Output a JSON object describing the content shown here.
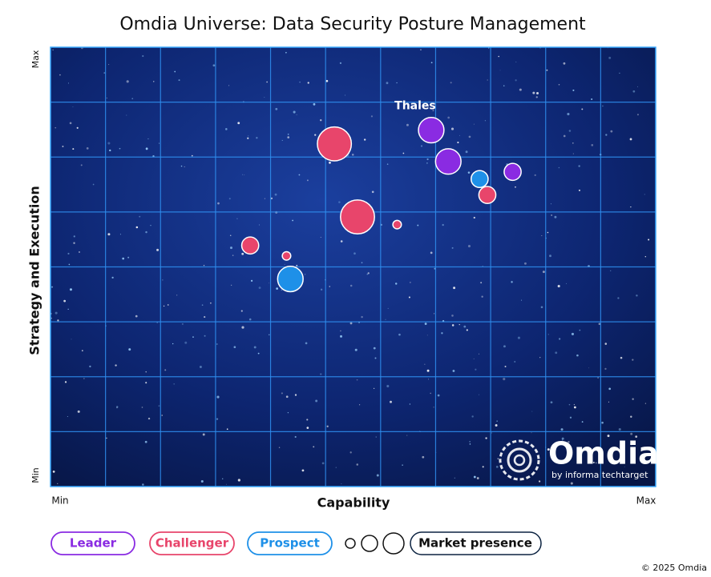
{
  "chart_data": {
    "type": "bubble",
    "title": "Omdia Universe: Data Security Posture Management",
    "x_label": "Capability",
    "y_label": "Strategy and Execution",
    "xlim": [
      0,
      11
    ],
    "ylim": [
      0,
      8
    ],
    "xticks": [
      {
        "value": 0,
        "label": "Min"
      },
      {
        "value": 11,
        "label": "Max"
      }
    ],
    "yticks": [
      {
        "value": 0,
        "label": "Min"
      },
      {
        "value": 8,
        "label": "Max"
      }
    ],
    "grid": true,
    "size_label": "Market presence",
    "series": [
      {
        "name": "Leader",
        "color": "#8a2be2",
        "x": [
          6.92,
          7.23,
          8.4
        ],
        "values": [
          6.49,
          5.92,
          5.73
        ],
        "sizes": [
          3,
          3,
          2
        ]
      },
      {
        "name": "Challenger",
        "color": "#e8456b",
        "x": [
          5.16,
          5.58,
          6.3,
          3.63,
          4.29,
          7.94
        ],
        "values": [
          6.24,
          4.91,
          4.77,
          4.39,
          4.2,
          5.31
        ],
        "sizes": [
          4,
          4,
          1,
          2,
          1,
          2
        ]
      },
      {
        "name": "Prospect",
        "color": "#1e90e8",
        "x": [
          7.8,
          4.36
        ],
        "values": [
          5.6,
          3.78
        ],
        "sizes": [
          2,
          3
        ]
      }
    ],
    "annotations": [
      {
        "text": "Thales",
        "series": 0,
        "index": 0
      }
    ],
    "logo": {
      "name": "Omdia",
      "tagline": "by informa techtarget"
    },
    "copyright": "© 2025 Omdia"
  }
}
